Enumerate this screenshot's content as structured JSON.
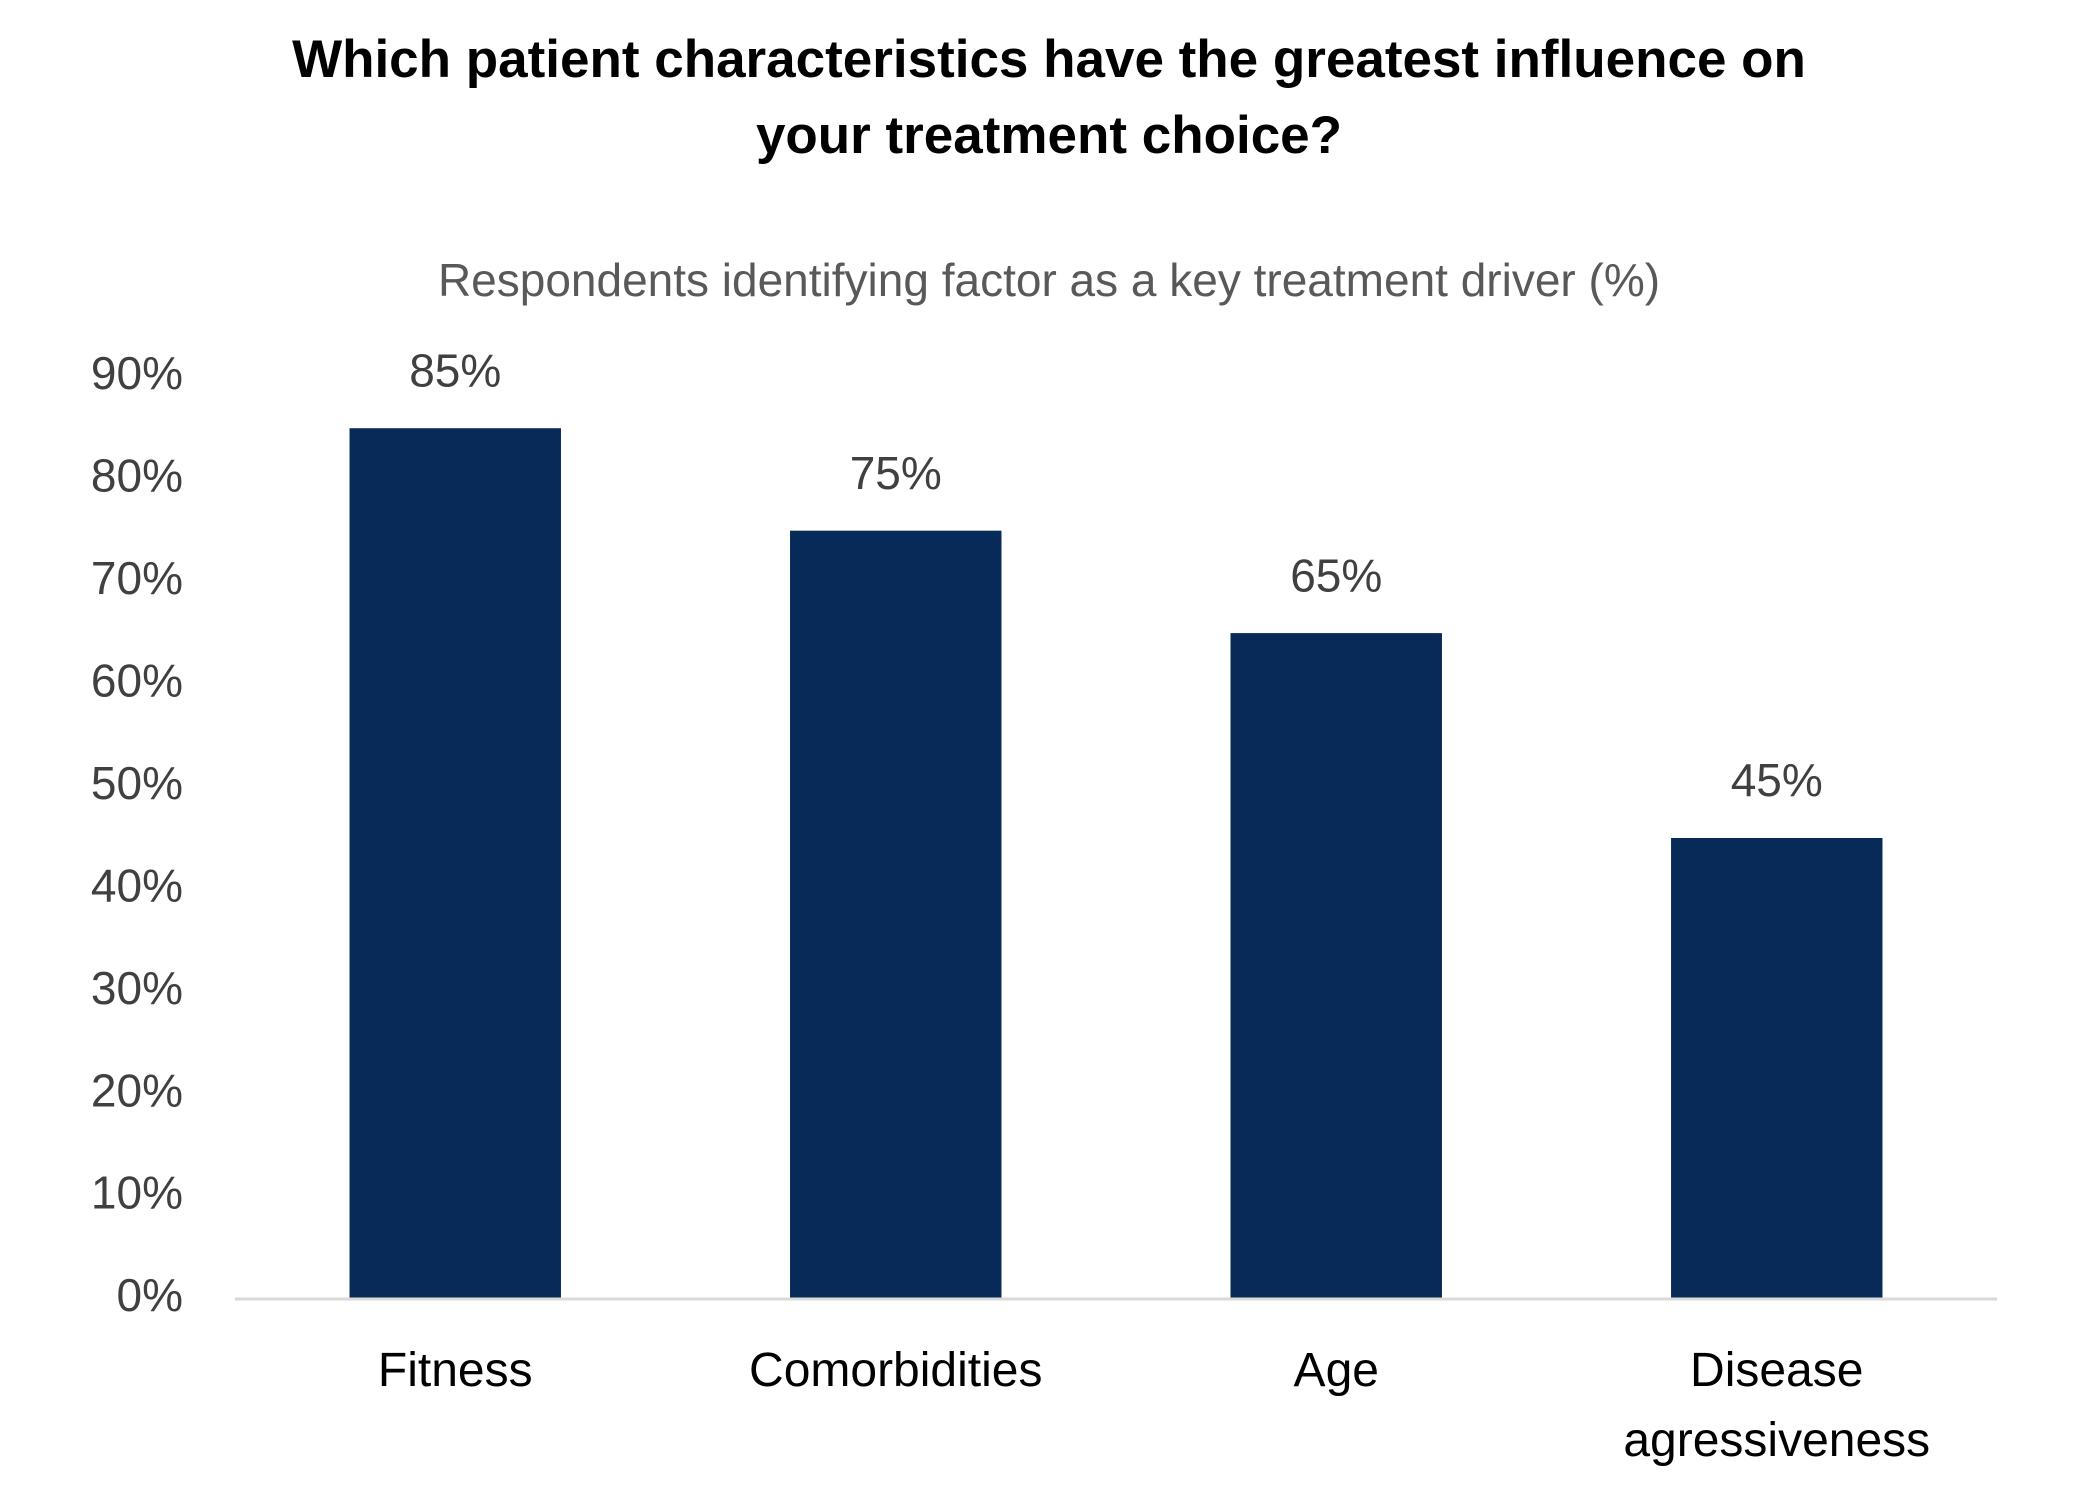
{
  "chart_data": {
    "type": "bar",
    "title_lines": [
      "Which patient characteristics have the greatest influence on",
      "your treatment choice?"
    ],
    "subtitle": "Respondents identifying factor as a key treatment driver (%)",
    "categories": [
      "Fitness",
      "Comorbidities",
      "Age",
      "Disease agressiveness"
    ],
    "values": [
      85,
      75,
      65,
      45
    ],
    "value_labels": [
      "85%",
      "75%",
      "65%",
      "45%"
    ],
    "color": "#072a58",
    "ylim": [
      0,
      90
    ],
    "yticks": [
      {
        "value": 0,
        "label": "0%"
      },
      {
        "value": 10,
        "label": "10%"
      },
      {
        "value": 20,
        "label": "20%"
      },
      {
        "value": 30,
        "label": "30%"
      },
      {
        "value": 40,
        "label": "40%"
      },
      {
        "value": 50,
        "label": "50%"
      },
      {
        "value": 60,
        "label": "60%"
      },
      {
        "value": 70,
        "label": "70%"
      },
      {
        "value": 80,
        "label": "80%"
      },
      {
        "value": 90,
        "label": "90%"
      }
    ],
    "grid": false
  }
}
